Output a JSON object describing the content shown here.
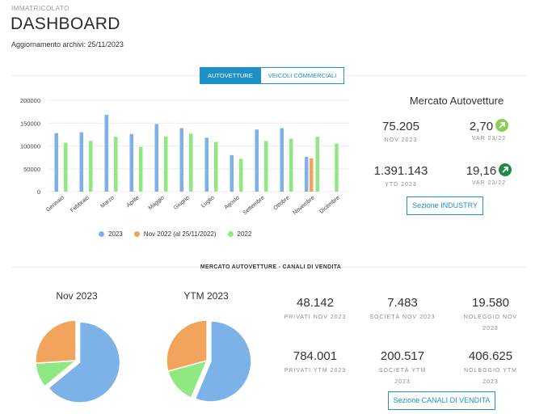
{
  "header": {
    "overline": "IMMATRICOLATO",
    "title": "DASHBOARD",
    "updated": "Aggiornamento archivi: 25/11/2023"
  },
  "tabs": [
    {
      "label": "AUTOVETTURE",
      "active": true
    },
    {
      "label": "VEICOLI COMMERCIALI",
      "active": false
    }
  ],
  "colors": {
    "y2023": "#7cb2e8",
    "nov2022": "#f2a45c",
    "y2022": "#90e883",
    "accent": "#1e90c8",
    "arrow_light": "#8ccd5a",
    "arrow_dark": "#1f8a48"
  },
  "chart_data": {
    "type": "bar",
    "categories": [
      "Gennaio",
      "Febbraio",
      "Marzo",
      "Aprile",
      "Maggio",
      "Giugno",
      "Luglio",
      "Agosto",
      "Settembre",
      "Ottobre",
      "Novembre",
      "Dicembre"
    ],
    "series": [
      {
        "name": "2023",
        "values": [
          128000,
          130000,
          168000,
          126000,
          148000,
          139000,
          118000,
          80000,
          136000,
          139000,
          76000,
          null
        ]
      },
      {
        "name": "Nov 2022 (al 25/11/2022)",
        "values": [
          null,
          null,
          null,
          null,
          null,
          null,
          null,
          null,
          null,
          null,
          73000,
          null
        ]
      },
      {
        "name": "2022",
        "values": [
          107000,
          111000,
          120000,
          98000,
          121000,
          127000,
          109000,
          72000,
          111000,
          116000,
          120000,
          105000
        ]
      }
    ],
    "ylim": [
      0,
      200000
    ],
    "yticks": [
      "0",
      "50000",
      "100000",
      "150000",
      "200000"
    ],
    "legend_position": "bottom"
  },
  "market": {
    "title": "Mercato Autovetture",
    "kpis": [
      {
        "value": "75.205",
        "label": "NOV 2023",
        "arrow": false
      },
      {
        "value": "2,70",
        "label": "VAR 23/22",
        "arrow": "light"
      },
      {
        "value": "1.391.143",
        "label": "YTD 2023",
        "arrow": false
      },
      {
        "value": "19,16",
        "label": "VAR 23/22",
        "arrow": "dark"
      }
    ],
    "button": "Sezione INDUSTRY"
  },
  "channels": {
    "title": "MERCATO AUTOVETTURE - CANALI DI VENDITA",
    "pie_nov_title": "Nov 2023",
    "pie_ytm_title": "YTM 2023",
    "pie_nov": {
      "privati": 48142,
      "societa": 7483,
      "noleggio": 19580
    },
    "pie_ytm": {
      "privati": 784001,
      "societa": 200517,
      "noleggio": 406625
    },
    "stats": [
      {
        "value": "48.142",
        "label": "PRIVATI NOV 2023"
      },
      {
        "value": "7.483",
        "label": "SOCIETÀ NOV 2023"
      },
      {
        "value": "19.580",
        "label": "NOLEGGIO NOV 2023"
      },
      {
        "value": "784.001",
        "label": "PRIVATI YTM 2023"
      },
      {
        "value": "200.517",
        "label": "SOCIETÀ YTM 2023"
      },
      {
        "value": "406.625",
        "label": "NOLEGGIO YTM 2023"
      }
    ],
    "button": "Sezione CANALI DI VENDITA"
  }
}
